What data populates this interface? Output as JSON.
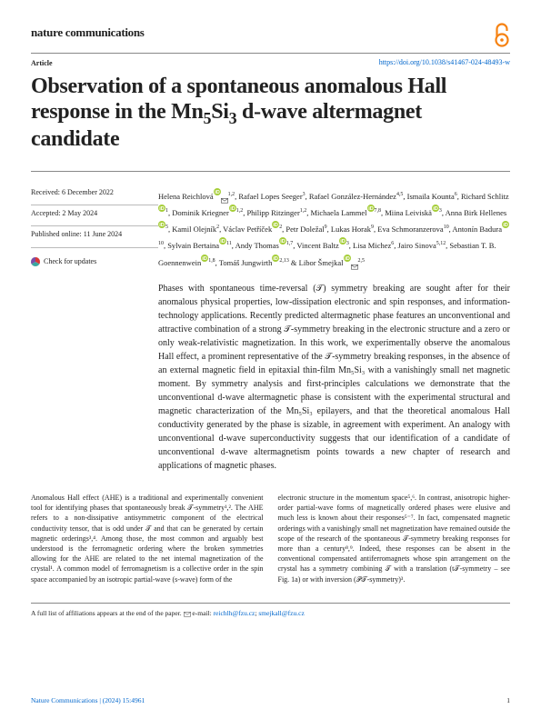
{
  "journal": "nature communications",
  "article_label": "Article",
  "doi": "https://doi.org/10.1038/s41467-024-48493-w",
  "title_pre": "Observation of a spontaneous anomalous Hall response in the Mn",
  "title_sub1": "5",
  "title_mid": "Si",
  "title_sub2": "3",
  "title_post": " d-wave altermagnet candidate",
  "received": "Received: 6 December 2022",
  "accepted": "Accepted: 2 May 2024",
  "published": "Published online: 11 June 2024",
  "check_updates": "Check for updates",
  "authors_html": "Helena Reichlová<sup>1,2</sup>, Rafael Lopes Seeger<sup>3</sup>, Rafael González-Hernández<sup>4,5</sup>, Ismaila Kounta<sup>6</sup>, Richard Schlitz<sup>1</sup>, Dominik Kriegner<sup>1,2</sup>, Philipp Ritzinger<sup>1,2</sup>, Michaela Lammel<sup>7,8</sup>, Miina Leiviskä<sup>3</sup>, Anna Birk Hellenes<sup>5</sup>, Kamil Olejník<sup>2</sup>, Václav Petříček<sup>2</sup>, Petr Doležal<sup>9</sup>, Lukas Horak<sup>9</sup>, Eva Schmoranzerova<sup>10</sup>, Antonín Badura<sup>10</sup>, Sylvain Bertaina<sup>11</sup>, Andy Thomas<sup>1,7</sup>, Vincent Baltz<sup>3</sup>, Lisa Michez<sup>6</sup>, Jairo Sinova<sup>5,12</sup>, Sebastian T. B. Goennenwein<sup>1,8</sup>, Tomáš Jungwirth<sup>2,13</sup> & Libor Šmejkal<sup>2,5</sup>",
  "abstract": "Phases with spontaneous time-reversal (𝒯) symmetry breaking are sought after for their anomalous physical properties, low-dissipation electronic and spin responses, and information-technology applications. Recently predicted altermagnetic phase features an unconventional and attractive combination of a strong 𝒯-symmetry breaking in the electronic structure and a zero or only weak-relativistic magnetization. In this work, we experimentally observe the anomalous Hall effect, a prominent representative of the 𝒯-symmetry breaking responses, in the absence of an external magnetic field in epitaxial thin-film Mn₅Si₃ with a vanishingly small net magnetic moment. By symmetry analysis and first-principles calculations we demonstrate that the unconventional d-wave altermagnetic phase is consistent with the experimental structural and magnetic characterization of the Mn₅Si₃ epilayers, and that the theoretical anomalous Hall conductivity generated by the phase is sizable, in agreement with experiment. An analogy with unconventional d-wave superconductivity suggests that our identification of a candidate of unconventional d-wave altermagnetism points towards a new chapter of research and applications of magnetic phases.",
  "body_left": "Anomalous Hall effect (AHE) is a traditional and experimentally convenient tool for identifying phases that spontaneously break 𝒯-symmetry¹,². The AHE refers to a non-dissipative antisymmetric component of the electrical conductivity tensor, that is odd under 𝒯 and that can be generated by certain magnetic orderings³,⁴. Among those, the most common and arguably best understood is the ferromagnetic ordering where the broken symmetries allowing for the AHE are related to the net internal magnetization of the crystal¹. A common model of ferromagnetism is a collective order in the spin space accompanied by an isotropic partial-wave (s-wave) form of the",
  "body_right": "electronic structure in the momentum space⁵,⁶. In contrast, anisotropic higher-order partial-wave forms of magnetically ordered phases were elusive and much less is known about their responses⁵⁻⁷. In fact, compensated magnetic orderings with a vanishingly small net magnetization have remained outside the scope of the research of the spontaneous 𝒯-symmetry breaking responses for more than a century⁸,⁹. Indeed, these responses can be absent in the conventional compensated antiferromagnets whose spin arrangement on the crystal has a symmetry combining 𝒯 with a translation (t𝒯-symmetry – see Fig. 1a) or with inversion (𝒫𝒯-symmetry)³.",
  "affiliations": "A full list of affiliations appears at the end of the paper.",
  "email_label": "e-mail:",
  "email1": "reichlh@fzu.cz",
  "email2": "smejkall@fzu.cz",
  "footer_cite": "Nature Communications | (2024) 15:4961",
  "footer_page": "1",
  "colors": {
    "link": "#0066cc",
    "orcid": "#a6ce39",
    "openaccess": "#f68212",
    "check_red": "#d93838",
    "check_purple": "#7b4da8",
    "check_teal": "#3aa8a0"
  }
}
